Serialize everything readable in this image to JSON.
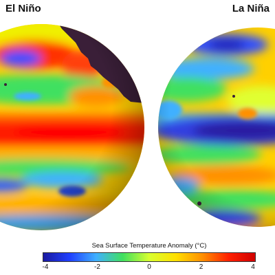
{
  "panels": [
    {
      "title": "El Niño",
      "pattern": "warm equatorial anomaly"
    },
    {
      "title": "La Niña",
      "pattern": "cool equatorial anomaly"
    }
  ],
  "legend": {
    "title": "Sea Surface Temperature Anomaly (°C)",
    "ticks": [
      "-4",
      "-2",
      "0",
      "2",
      "4"
    ],
    "range": [
      -4,
      4
    ],
    "colors": [
      "#1a1aa0",
      "#2040ff",
      "#40b0ff",
      "#40e060",
      "#d8ff30",
      "#ffe000",
      "#ff9000",
      "#ff2000",
      "#d00000"
    ]
  },
  "colors": {
    "land": "#3a1f38",
    "background": "#ffffff"
  }
}
